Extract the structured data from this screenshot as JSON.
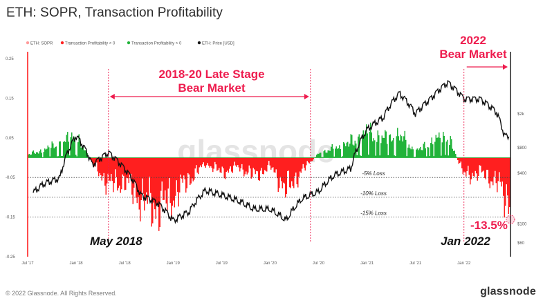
{
  "title": "ETH: SOPR, Transaction Profitability",
  "footer": {
    "copyright": "© 2022 Glassnode. All Rights Reserved.",
    "brand": "glassnode"
  },
  "watermark": "glassnode",
  "colors": {
    "loss": "#ff1f1f",
    "profit": "#22b33a",
    "price": "#111111",
    "annotation": "#ee1c4e",
    "grid": "#444444"
  },
  "annotations": {
    "bear_2018": [
      "2018-20 Late Stage",
      "Bear Market"
    ],
    "bear_2022": [
      "2022",
      "Bear Market"
    ],
    "may_2018": "May 2018",
    "jan_2022": "Jan 2022",
    "current": "-13.5%",
    "loss_levels": [
      "-5% Loss",
      "-10% Loss",
      "-15% Loss"
    ]
  },
  "chart_data": {
    "type": "area",
    "legend": [
      {
        "label": "ETH: SOPR",
        "color": "#ff9a9a"
      },
      {
        "label": "Transaction Profitability < 0",
        "color": "#ff1f1f"
      },
      {
        "label": "Transaction Profitability > 0",
        "color": "#22b33a"
      },
      {
        "label": "ETH: Price [USD]",
        "color": "#111111"
      }
    ],
    "x_ticks": [
      "Jul '17",
      "Jan '18",
      "Jul '18",
      "Jan '19",
      "Jul '19",
      "Jan '20",
      "Jul '20",
      "Jan '21",
      "Jul '21",
      "Jan '22"
    ],
    "y_left_ticks": [
      "0.25",
      "0.15",
      "0.05",
      "-0.05",
      "-0.15",
      "-0.25"
    ],
    "y_left_range": [
      -0.25,
      0.25
    ],
    "y_right_ticks": [
      "$2k",
      "$800",
      "$400",
      "$100",
      "$60"
    ],
    "y_right_scale": "log",
    "loss_thresholds": [
      -0.05,
      -0.1,
      -0.15
    ],
    "marked_dates": [
      "2018-05",
      "2020-06",
      "2022-01"
    ],
    "current_value": -0.135,
    "profitability": {
      "x": [
        "2017-07",
        "2017-09",
        "2017-11",
        "2018-01",
        "2018-03",
        "2018-05",
        "2018-07",
        "2018-09",
        "2018-11",
        "2019-01",
        "2019-03",
        "2019-05",
        "2019-07",
        "2019-09",
        "2019-11",
        "2020-01",
        "2020-03",
        "2020-05",
        "2020-07",
        "2020-09",
        "2020-11",
        "2021-01",
        "2021-03",
        "2021-05",
        "2021-07",
        "2021-09",
        "2021-11",
        "2022-01",
        "2022-03",
        "2022-05",
        "2022-06"
      ],
      "values": [
        0.01,
        0.025,
        0.045,
        0.07,
        -0.02,
        -0.09,
        -0.08,
        -0.14,
        -0.17,
        -0.13,
        -0.07,
        -0.02,
        -0.05,
        -0.03,
        -0.06,
        -0.03,
        -0.11,
        -0.04,
        0.015,
        0.03,
        0.05,
        0.08,
        0.06,
        0.07,
        0.02,
        0.05,
        0.07,
        -0.06,
        -0.05,
        -0.08,
        -0.135
      ]
    },
    "price_usd": {
      "x": [
        "2017-07",
        "2017-09",
        "2017-11",
        "2018-01",
        "2018-03",
        "2018-05",
        "2018-07",
        "2018-09",
        "2018-11",
        "2019-01",
        "2019-03",
        "2019-05",
        "2019-07",
        "2019-09",
        "2019-11",
        "2020-01",
        "2020-03",
        "2020-05",
        "2020-07",
        "2020-09",
        "2020-11",
        "2021-01",
        "2021-03",
        "2021-05",
        "2021-07",
        "2021-09",
        "2021-11",
        "2022-01",
        "2022-03",
        "2022-05",
        "2022-06"
      ],
      "values": [
        200,
        300,
        350,
        1100,
        500,
        700,
        450,
        220,
        180,
        110,
        140,
        250,
        220,
        190,
        150,
        150,
        110,
        200,
        240,
        380,
        450,
        1300,
        1800,
        3500,
        2000,
        3100,
        4700,
        3000,
        3000,
        2100,
        1100
      ]
    }
  }
}
